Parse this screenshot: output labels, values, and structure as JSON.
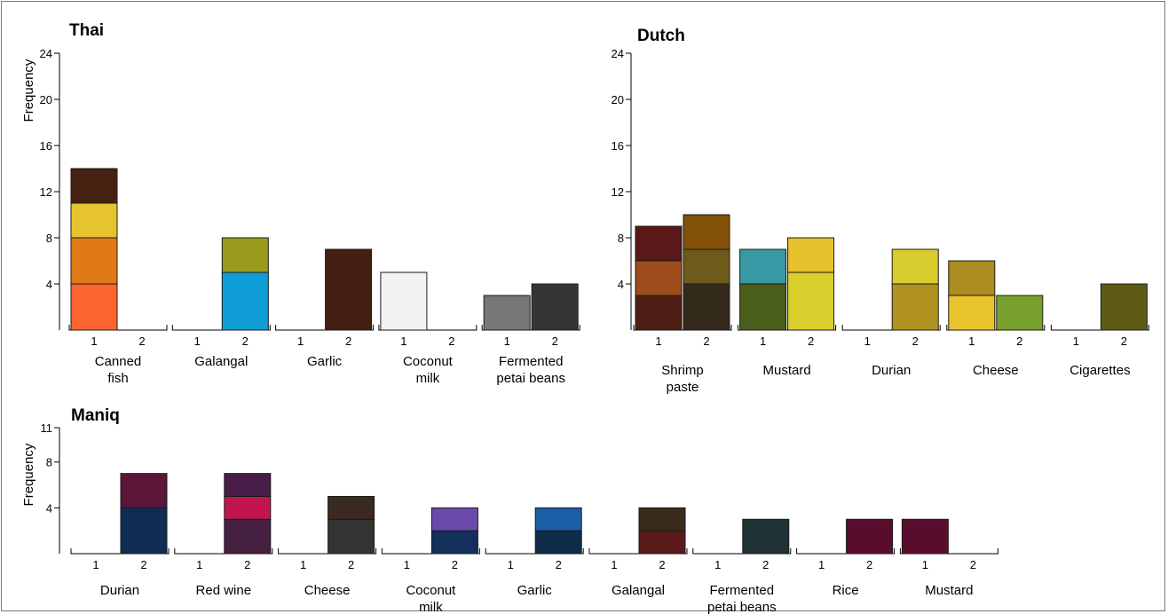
{
  "chart_data": [
    {
      "type": "bar",
      "stacked": true,
      "title": "Thai",
      "ylabel": "Frequency",
      "ylim": [
        0,
        24
      ],
      "yticks": [
        4,
        8,
        12,
        16,
        20,
        24
      ],
      "groups": [
        {
          "label": "Canned\nfish",
          "bars": [
            {
              "x": "1",
              "segments": [
                {
                  "value": 4,
                  "color": "#fd6530"
                },
                {
                  "value": 4,
                  "color": "#e07a16"
                },
                {
                  "value": 3,
                  "color": "#e6c42f"
                },
                {
                  "value": 3,
                  "color": "#452112"
                }
              ]
            },
            {
              "x": "2",
              "segments": []
            }
          ]
        },
        {
          "label": "Galangal",
          "bars": [
            {
              "x": "1",
              "segments": []
            },
            {
              "x": "2",
              "segments": [
                {
                  "value": 5,
                  "color": "#0f9ed8"
                },
                {
                  "value": 3,
                  "color": "#9b9a1c"
                }
              ]
            }
          ]
        },
        {
          "label": "Garlic",
          "bars": [
            {
              "x": "1",
              "segments": []
            },
            {
              "x": "2",
              "segments": [
                {
                  "value": 7,
                  "color": "#432012"
                }
              ]
            }
          ]
        },
        {
          "label": "Coconut\nmilk",
          "bars": [
            {
              "x": "1",
              "segments": [
                {
                  "value": 5,
                  "color": "#f2f2f2"
                }
              ]
            },
            {
              "x": "2",
              "segments": []
            }
          ]
        },
        {
          "label": "Fermented\npetai beans",
          "bars": [
            {
              "x": "1",
              "segments": [
                {
                  "value": 3,
                  "color": "#777777"
                }
              ]
            },
            {
              "x": "2",
              "segments": [
                {
                  "value": 4,
                  "color": "#353535"
                }
              ]
            }
          ]
        }
      ]
    },
    {
      "type": "bar",
      "stacked": true,
      "title": "Dutch",
      "ylabel": "",
      "ylim": [
        0,
        24
      ],
      "yticks": [
        4,
        8,
        12,
        16,
        20,
        24
      ],
      "groups": [
        {
          "label": "Shrimp\npaste",
          "bars": [
            {
              "x": "1",
              "segments": [
                {
                  "value": 3,
                  "color": "#4e1e14"
                },
                {
                  "value": 3,
                  "color": "#9e4c1c"
                },
                {
                  "value": 3,
                  "color": "#5b1818"
                }
              ]
            },
            {
              "x": "2",
              "segments": [
                {
                  "value": 4,
                  "color": "#342a1b"
                },
                {
                  "value": 3,
                  "color": "#6e5a1a"
                },
                {
                  "value": 3,
                  "color": "#83510a"
                }
              ]
            }
          ]
        },
        {
          "label": "Mustard",
          "bars": [
            {
              "x": "1",
              "segments": [
                {
                  "value": 4,
                  "color": "#4a5e1c"
                },
                {
                  "value": 3,
                  "color": "#3898a3"
                }
              ]
            },
            {
              "x": "2",
              "segments": [
                {
                  "value": 5,
                  "color": "#d9cf2c"
                },
                {
                  "value": 3,
                  "color": "#e7c12e"
                }
              ]
            }
          ]
        },
        {
          "label": "Durian",
          "bars": [
            {
              "x": "1",
              "segments": []
            },
            {
              "x": "2",
              "segments": [
                {
                  "value": 4,
                  "color": "#b0941f"
                },
                {
                  "value": 3,
                  "color": "#d7cd2e"
                }
              ]
            }
          ]
        },
        {
          "label": "Cheese",
          "bars": [
            {
              "x": "1",
              "segments": [
                {
                  "value": 3,
                  "color": "#e7c42c"
                },
                {
                  "value": 3,
                  "color": "#ac8b1f"
                }
              ]
            },
            {
              "x": "2",
              "segments": [
                {
                  "value": 3,
                  "color": "#79a02c"
                }
              ]
            }
          ]
        },
        {
          "label": "Cigarettes",
          "bars": [
            {
              "x": "1",
              "segments": []
            },
            {
              "x": "2",
              "segments": [
                {
                  "value": 4,
                  "color": "#5e5b14"
                }
              ]
            }
          ]
        }
      ]
    },
    {
      "type": "bar",
      "stacked": true,
      "title": "Maniq",
      "ylabel": "Frequency",
      "ylim": [
        0,
        11
      ],
      "yticks": [
        4,
        8,
        11
      ],
      "groups": [
        {
          "label": "Durian",
          "bars": [
            {
              "x": "1",
              "segments": []
            },
            {
              "x": "2",
              "segments": [
                {
                  "value": 4,
                  "color": "#102c54"
                },
                {
                  "value": 3,
                  "color": "#5c1639"
                }
              ]
            }
          ]
        },
        {
          "label": "Red wine",
          "bars": [
            {
              "x": "1",
              "segments": []
            },
            {
              "x": "2",
              "segments": [
                {
                  "value": 3,
                  "color": "#462040"
                },
                {
                  "value": 2,
                  "color": "#c2154d"
                },
                {
                  "value": 2,
                  "color": "#481e48"
                }
              ]
            }
          ]
        },
        {
          "label": "Cheese",
          "bars": [
            {
              "x": "1",
              "segments": []
            },
            {
              "x": "2",
              "segments": [
                {
                  "value": 3,
                  "color": "#333333"
                },
                {
                  "value": 2,
                  "color": "#3a2a22"
                }
              ]
            }
          ]
        },
        {
          "label": "Coconut\nmilk",
          "bars": [
            {
              "x": "1",
              "segments": []
            },
            {
              "x": "2",
              "segments": [
                {
                  "value": 2,
                  "color": "#142f5b"
                },
                {
                  "value": 2,
                  "color": "#6a4aaa"
                }
              ]
            }
          ]
        },
        {
          "label": "Garlic",
          "bars": [
            {
              "x": "1",
              "segments": []
            },
            {
              "x": "2",
              "segments": [
                {
                  "value": 2,
                  "color": "#0e2c48"
                },
                {
                  "value": 2,
                  "color": "#1c5ea6"
                }
              ]
            }
          ]
        },
        {
          "label": "Galangal",
          "bars": [
            {
              "x": "1",
              "segments": []
            },
            {
              "x": "2",
              "segments": [
                {
                  "value": 2,
                  "color": "#5a1a1a"
                },
                {
                  "value": 2,
                  "color": "#3a2c1c"
                }
              ]
            }
          ]
        },
        {
          "label": "Fermented\npetai beans",
          "bars": [
            {
              "x": "1",
              "segments": []
            },
            {
              "x": "2",
              "segments": [
                {
                  "value": 3,
                  "color": "#1f3133"
                }
              ]
            }
          ]
        },
        {
          "label": "Rice",
          "bars": [
            {
              "x": "1",
              "segments": []
            },
            {
              "x": "2",
              "segments": [
                {
                  "value": 3,
                  "color": "#5a0c2c"
                }
              ]
            }
          ]
        },
        {
          "label": "Mustard",
          "bars": [
            {
              "x": "1",
              "segments": [
                {
                  "value": 3,
                  "color": "#5a0c2c"
                }
              ]
            },
            {
              "x": "2",
              "segments": []
            }
          ]
        }
      ]
    }
  ]
}
